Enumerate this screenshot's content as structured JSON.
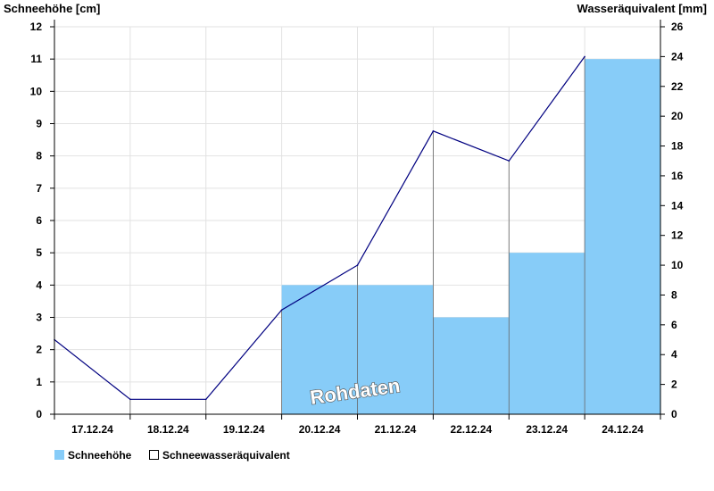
{
  "chart_data": {
    "type": "bar",
    "categories": [
      "17.12.24",
      "18.12.24",
      "19.12.24",
      "20.12.24",
      "21.12.24",
      "22.12.24",
      "23.12.24",
      "24.12.24"
    ],
    "y_left_label": "Schneehöhe [cm]",
    "y_right_label": "Wasseräquivalent [mm]",
    "ylim_left": [
      0,
      12
    ],
    "ylim_right": [
      0,
      26
    ],
    "yticks_left": [
      "0",
      "1",
      "2",
      "3",
      "4",
      "5",
      "6",
      "7",
      "8",
      "9",
      "10",
      "11",
      "12"
    ],
    "yticks_right": [
      "0",
      "2",
      "4",
      "6",
      "8",
      "10",
      "12",
      "14",
      "16",
      "18",
      "20",
      "22",
      "24",
      "26"
    ],
    "grid": true,
    "series": [
      {
        "name": "Schneehöhe",
        "kind": "bar",
        "axis": "left",
        "color": "#87ccf8",
        "values": [
          0,
          0,
          0,
          4,
          4,
          3,
          5,
          11
        ]
      },
      {
        "name": "Schneewasseräquivalent",
        "kind": "line",
        "axis": "right",
        "color": "#000080",
        "values": [
          5,
          1,
          1,
          7,
          10,
          19,
          17,
          24
        ]
      }
    ],
    "legend": {
      "placement": "bottom-left",
      "items": [
        "Schneehöhe",
        "Schneewasseräquivalent"
      ]
    },
    "watermark": "Rohdaten"
  }
}
